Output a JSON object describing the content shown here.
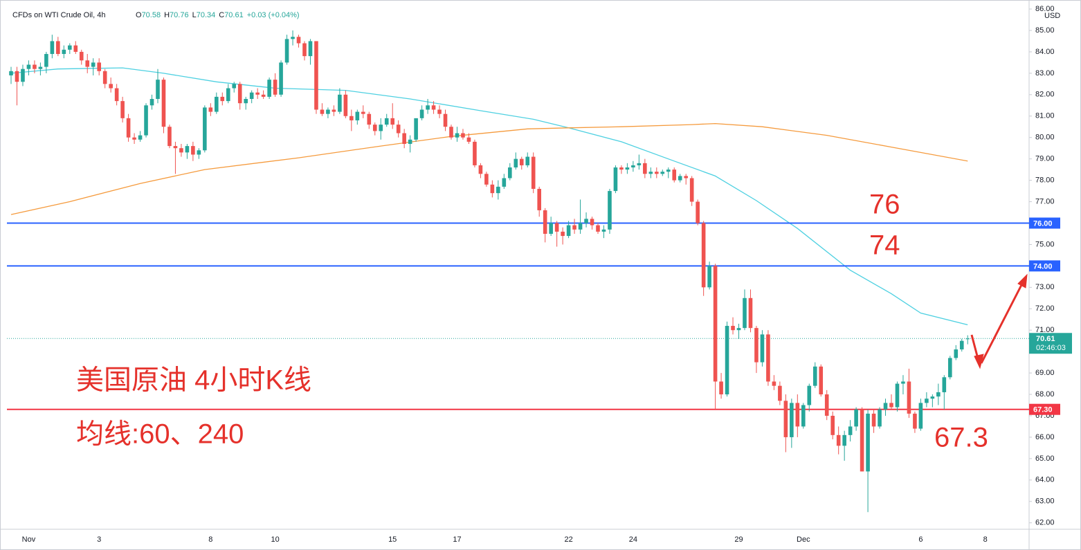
{
  "chart_data": {
    "type": "candlestick",
    "symbol": "CFDs on WTI Crude Oil, 4h",
    "readout": [
      [
        "O",
        "70.58"
      ],
      [
        "H",
        "70.76"
      ],
      [
        "L",
        "70.34"
      ],
      [
        "C",
        "70.61"
      ]
    ],
    "change": "+0.03 (+0.04%)",
    "currency": "USD",
    "up_color": "#26a69a",
    "down_color": "#ef5350",
    "ylim": [
      61.7,
      86.26
    ],
    "yticks": [
      {
        "value": 62,
        "label": "62.00"
      },
      {
        "value": 63,
        "label": "63.00"
      },
      {
        "value": 64,
        "label": "64.00"
      },
      {
        "value": 65,
        "label": "65.00"
      },
      {
        "value": 66,
        "label": "66.00"
      },
      {
        "value": 67,
        "label": "67.00"
      },
      {
        "value": 68,
        "label": "68.00"
      },
      {
        "value": 69,
        "label": "69.00"
      },
      {
        "value": 70,
        "label": "70.00"
      },
      {
        "value": 71,
        "label": "71.00"
      },
      {
        "value": 72,
        "label": "72.00"
      },
      {
        "value": 73,
        "label": "73.00"
      },
      {
        "value": 74,
        "label": "74.00"
      },
      {
        "value": 75,
        "label": "75.00"
      },
      {
        "value": 76,
        "label": "76.00"
      },
      {
        "value": 77,
        "label": "77.00"
      },
      {
        "value": 78,
        "label": "78.00"
      },
      {
        "value": 79,
        "label": "79.00"
      },
      {
        "value": 80,
        "label": "80.00"
      },
      {
        "value": 81,
        "label": "81.00"
      },
      {
        "value": 82,
        "label": "82.00"
      },
      {
        "value": 83,
        "label": "83.00"
      },
      {
        "value": 84,
        "label": "84.00"
      },
      {
        "value": 85,
        "label": "85.00"
      },
      {
        "value": 86,
        "label": "86.00"
      }
    ],
    "categories": [
      null,
      null,
      null,
      "Nov",
      null,
      null,
      null,
      null,
      null,
      null,
      null,
      null,
      null,
      null,
      null,
      "3",
      null,
      null,
      null,
      null,
      null,
      null,
      null,
      null,
      null,
      null,
      null,
      null,
      null,
      null,
      null,
      null,
      null,
      null,
      "8",
      null,
      null,
      null,
      null,
      null,
      null,
      null,
      null,
      null,
      null,
      "10",
      null,
      null,
      null,
      null,
      null,
      null,
      null,
      null,
      null,
      null,
      null,
      null,
      null,
      null,
      null,
      null,
      null,
      null,
      null,
      "15",
      null,
      null,
      null,
      null,
      null,
      null,
      null,
      null,
      null,
      null,
      "17",
      null,
      null,
      null,
      null,
      null,
      null,
      null,
      null,
      null,
      null,
      null,
      null,
      null,
      null,
      null,
      null,
      null,
      null,
      "22",
      null,
      null,
      null,
      null,
      null,
      null,
      null,
      null,
      null,
      null,
      "24",
      null,
      null,
      null,
      null,
      null,
      null,
      null,
      null,
      null,
      null,
      null,
      null,
      null,
      null,
      null,
      null,
      null,
      "29",
      null,
      null,
      null,
      null,
      null,
      null,
      null,
      null,
      null,
      null,
      "Dec",
      null,
      null,
      null,
      null,
      null,
      null,
      null,
      null,
      null,
      null,
      null,
      null,
      null,
      null,
      null,
      null,
      null,
      null,
      null,
      "6",
      null,
      null,
      null,
      null,
      null,
      null,
      null,
      null,
      null,
      null,
      "8"
    ],
    "ohlc": [
      [
        82.9,
        83.3,
        82.5,
        83.1
      ],
      [
        83.1,
        83.3,
        81.5,
        82.6
      ],
      [
        82.6,
        83.4,
        82.4,
        83.2
      ],
      [
        83.2,
        83.6,
        82.9,
        83.4
      ],
      [
        83.4,
        83.6,
        83.0,
        83.2
      ],
      [
        83.2,
        83.5,
        82.9,
        83.3
      ],
      [
        83.3,
        84.0,
        83.0,
        83.9
      ],
      [
        83.9,
        84.8,
        83.7,
        84.5
      ],
      [
        84.5,
        84.7,
        83.8,
        83.9
      ],
      [
        83.9,
        84.3,
        83.7,
        84.1
      ],
      [
        84.1,
        84.4,
        83.9,
        84.3
      ],
      [
        84.3,
        84.5,
        83.9,
        84.0
      ],
      [
        84.0,
        84.1,
        83.4,
        83.6
      ],
      [
        83.6,
        83.9,
        83.0,
        83.3
      ],
      [
        83.3,
        83.7,
        82.9,
        83.5
      ],
      [
        83.5,
        83.7,
        82.9,
        83.1
      ],
      [
        83.1,
        83.2,
        82.3,
        82.5
      ],
      [
        82.5,
        82.8,
        82.1,
        82.3
      ],
      [
        82.3,
        82.5,
        81.5,
        81.7
      ],
      [
        81.7,
        81.9,
        80.7,
        80.9
      ],
      [
        80.9,
        81.1,
        79.8,
        80.0
      ],
      [
        80.0,
        80.2,
        79.7,
        79.9
      ],
      [
        79.9,
        80.3,
        79.8,
        80.1
      ],
      [
        80.1,
        81.6,
        80.0,
        81.5
      ],
      [
        81.5,
        82.0,
        81.3,
        81.8
      ],
      [
        81.8,
        83.2,
        81.6,
        82.7
      ],
      [
        82.7,
        82.8,
        80.2,
        80.5
      ],
      [
        80.5,
        80.6,
        79.5,
        79.6
      ],
      [
        79.6,
        79.8,
        78.3,
        79.5
      ],
      [
        79.5,
        79.7,
        79.1,
        79.3
      ],
      [
        79.3,
        79.7,
        79.0,
        79.6
      ],
      [
        79.6,
        79.8,
        78.9,
        79.2
      ],
      [
        79.2,
        79.5,
        79.0,
        79.4
      ],
      [
        79.4,
        81.5,
        79.3,
        81.4
      ],
      [
        81.4,
        81.6,
        81.0,
        81.2
      ],
      [
        81.2,
        82.1,
        81.1,
        81.9
      ],
      [
        81.9,
        82.1,
        81.5,
        81.7
      ],
      [
        81.7,
        82.5,
        81.6,
        82.3
      ],
      [
        82.3,
        82.6,
        82.1,
        82.5
      ],
      [
        82.5,
        82.6,
        81.3,
        81.6
      ],
      [
        81.6,
        81.9,
        81.3,
        81.8
      ],
      [
        81.8,
        82.2,
        81.6,
        82.1
      ],
      [
        82.1,
        82.3,
        81.8,
        82.0
      ],
      [
        82.0,
        82.2,
        81.8,
        81.9
      ],
      [
        81.9,
        82.8,
        81.8,
        82.7
      ],
      [
        82.7,
        83.0,
        81.9,
        82.0
      ],
      [
        82.0,
        83.6,
        81.9,
        83.5
      ],
      [
        83.5,
        84.8,
        83.4,
        84.6
      ],
      [
        84.6,
        85.0,
        84.3,
        84.7
      ],
      [
        84.7,
        84.8,
        84.2,
        84.4
      ],
      [
        84.4,
        84.5,
        83.6,
        83.8
      ],
      [
        83.8,
        84.6,
        83.4,
        84.5
      ],
      [
        84.5,
        84.5,
        81.1,
        81.3
      ],
      [
        81.3,
        81.6,
        81.0,
        81.1
      ],
      [
        81.1,
        81.4,
        80.9,
        81.3
      ],
      [
        81.3,
        81.5,
        81.0,
        81.2
      ],
      [
        81.2,
        82.3,
        81.1,
        82.0
      ],
      [
        82.0,
        82.2,
        80.9,
        81.0
      ],
      [
        81.0,
        81.3,
        80.3,
        80.8
      ],
      [
        80.8,
        81.3,
        80.6,
        81.2
      ],
      [
        81.2,
        81.5,
        80.9,
        81.1
      ],
      [
        81.1,
        81.2,
        80.4,
        80.6
      ],
      [
        80.6,
        80.7,
        80.1,
        80.3
      ],
      [
        80.3,
        80.9,
        79.9,
        80.6
      ],
      [
        80.6,
        81.1,
        80.5,
        80.9
      ],
      [
        80.9,
        81.6,
        80.4,
        80.6
      ],
      [
        80.6,
        80.8,
        80.0,
        80.2
      ],
      [
        80.2,
        80.4,
        79.5,
        79.7
      ],
      [
        79.7,
        80.1,
        79.3,
        79.9
      ],
      [
        79.9,
        80.8,
        79.8,
        80.9
      ],
      [
        80.9,
        81.5,
        80.8,
        81.3
      ],
      [
        81.3,
        81.8,
        81.1,
        81.5
      ],
      [
        81.5,
        81.7,
        81.1,
        81.3
      ],
      [
        81.3,
        81.5,
        80.9,
        81.1
      ],
      [
        81.1,
        81.3,
        80.3,
        80.5
      ],
      [
        80.5,
        80.6,
        79.9,
        80.0
      ],
      [
        80.0,
        80.5,
        79.8,
        80.2
      ],
      [
        80.2,
        80.4,
        79.9,
        80.0
      ],
      [
        80.0,
        80.2,
        79.7,
        79.8
      ],
      [
        79.8,
        79.9,
        78.6,
        78.7
      ],
      [
        78.7,
        78.8,
        78.1,
        78.3
      ],
      [
        78.3,
        78.4,
        77.7,
        77.8
      ],
      [
        77.8,
        78.0,
        77.2,
        77.4
      ],
      [
        77.4,
        78.0,
        77.1,
        77.7
      ],
      [
        77.7,
        78.3,
        77.6,
        78.1
      ],
      [
        78.1,
        78.8,
        78.0,
        78.6
      ],
      [
        78.6,
        79.3,
        78.5,
        79.0
      ],
      [
        79.0,
        79.1,
        78.5,
        78.7
      ],
      [
        78.7,
        79.3,
        78.6,
        79.1
      ],
      [
        79.1,
        79.3,
        77.4,
        77.6
      ],
      [
        77.6,
        77.7,
        76.3,
        76.6
      ],
      [
        76.6,
        76.7,
        75.1,
        75.5
      ],
      [
        75.5,
        76.3,
        75.4,
        76.0
      ],
      [
        76.0,
        76.1,
        74.9,
        75.6
      ],
      [
        75.6,
        75.8,
        75.0,
        75.4
      ],
      [
        75.4,
        76.1,
        75.3,
        75.9
      ],
      [
        75.9,
        76.2,
        75.5,
        75.7
      ],
      [
        75.7,
        77.1,
        75.5,
        76.0
      ],
      [
        76.0,
        76.5,
        75.8,
        76.2
      ],
      [
        76.2,
        76.3,
        75.7,
        75.9
      ],
      [
        75.9,
        76.0,
        75.5,
        75.6
      ],
      [
        75.6,
        75.9,
        75.3,
        75.7
      ],
      [
        75.7,
        77.6,
        75.5,
        77.5
      ],
      [
        77.5,
        78.7,
        77.4,
        78.6
      ],
      [
        78.6,
        78.7,
        78.3,
        78.5
      ],
      [
        78.5,
        78.8,
        78.3,
        78.6
      ],
      [
        78.6,
        78.9,
        78.4,
        78.7
      ],
      [
        78.7,
        79.2,
        78.5,
        78.8
      ],
      [
        78.8,
        79.0,
        78.1,
        78.3
      ],
      [
        78.3,
        78.6,
        78.1,
        78.4
      ],
      [
        78.4,
        78.6,
        78.1,
        78.3
      ],
      [
        78.3,
        78.5,
        78.2,
        78.4
      ],
      [
        78.4,
        78.6,
        78.1,
        78.5
      ],
      [
        78.5,
        78.6,
        77.9,
        78.0
      ],
      [
        78.0,
        78.3,
        77.9,
        78.2
      ],
      [
        78.2,
        78.3,
        77.8,
        78.1
      ],
      [
        78.1,
        78.2,
        76.8,
        77.0
      ],
      [
        77.0,
        77.1,
        75.9,
        76.0
      ],
      [
        76.0,
        76.1,
        72.6,
        73.0
      ],
      [
        73.0,
        74.2,
        72.9,
        74.0
      ],
      [
        74.0,
        74.1,
        67.3,
        68.6
      ],
      [
        68.6,
        69.0,
        67.8,
        68.0
      ],
      [
        68.0,
        71.4,
        67.9,
        71.2
      ],
      [
        71.2,
        71.6,
        70.8,
        71.0
      ],
      [
        71.0,
        71.3,
        70.6,
        71.1
      ],
      [
        71.1,
        72.9,
        71.0,
        72.5
      ],
      [
        72.5,
        72.9,
        70.9,
        71.1
      ],
      [
        71.1,
        71.2,
        69.0,
        69.5
      ],
      [
        69.5,
        71.0,
        69.3,
        70.8
      ],
      [
        70.8,
        71.0,
        68.4,
        68.6
      ],
      [
        68.6,
        68.9,
        68.2,
        68.4
      ],
      [
        68.4,
        68.6,
        67.5,
        67.7
      ],
      [
        67.7,
        68.0,
        65.3,
        66.0
      ],
      [
        66.0,
        67.8,
        65.5,
        67.6
      ],
      [
        67.6,
        68.0,
        66.0,
        66.5
      ],
      [
        66.5,
        67.6,
        66.4,
        67.5
      ],
      [
        67.5,
        68.5,
        67.2,
        68.4
      ],
      [
        68.4,
        69.5,
        68.3,
        69.3
      ],
      [
        69.3,
        69.4,
        67.9,
        68.0
      ],
      [
        68.0,
        68.2,
        66.8,
        67.0
      ],
      [
        67.0,
        67.2,
        65.9,
        66.1
      ],
      [
        66.1,
        66.5,
        65.2,
        65.6
      ],
      [
        65.6,
        66.3,
        64.9,
        66.1
      ],
      [
        66.1,
        66.8,
        65.8,
        66.5
      ],
      [
        66.5,
        67.4,
        66.3,
        67.3
      ],
      [
        67.3,
        67.4,
        64.4,
        64.4
      ],
      [
        64.4,
        67.3,
        62.5,
        67.1
      ],
      [
        67.1,
        67.3,
        66.2,
        66.5
      ],
      [
        66.5,
        67.4,
        66.4,
        67.3
      ],
      [
        67.3,
        67.8,
        67.0,
        67.6
      ],
      [
        67.6,
        68.0,
        67.3,
        67.4
      ],
      [
        67.4,
        68.6,
        67.2,
        68.5
      ],
      [
        68.5,
        68.9,
        68.0,
        68.6
      ],
      [
        68.6,
        69.2,
        66.9,
        67.1
      ],
      [
        67.1,
        67.2,
        66.2,
        66.4
      ],
      [
        66.4,
        67.8,
        66.3,
        67.6
      ],
      [
        67.6,
        68.1,
        67.4,
        67.8
      ],
      [
        67.8,
        68.0,
        67.4,
        67.9
      ],
      [
        67.9,
        68.5,
        67.5,
        68.1
      ],
      [
        68.1,
        68.9,
        67.3,
        68.8
      ],
      [
        68.8,
        69.8,
        68.7,
        69.7
      ],
      [
        69.7,
        70.3,
        69.6,
        70.1
      ],
      [
        70.1,
        70.6,
        70.0,
        70.5
      ],
      [
        70.58,
        70.76,
        70.34,
        70.61
      ],
      null,
      null,
      null
    ],
    "moving_averages": [
      {
        "color": "#4dd0e1",
        "x": [
          0,
          8,
          19,
          26,
          35,
          45,
          57,
          68,
          80,
          89,
          95,
          104,
          113,
          120,
          127,
          134,
          143,
          150,
          155,
          163
        ],
        "values": [
          83.0,
          83.2,
          83.25,
          83.0,
          82.6,
          82.3,
          82.2,
          81.8,
          81.25,
          80.85,
          80.45,
          79.8,
          78.9,
          78.2,
          77.05,
          75.75,
          73.8,
          72.7,
          71.8,
          71.25
        ]
      },
      {
        "color": "#f59a3c",
        "x": [
          0,
          10,
          22,
          33,
          49,
          63,
          75,
          88,
          95,
          104,
          116,
          120,
          128,
          139,
          150,
          163
        ],
        "values": [
          76.4,
          77.0,
          77.85,
          78.5,
          79.05,
          79.6,
          80.05,
          80.4,
          80.45,
          80.5,
          80.6,
          80.65,
          80.5,
          80.1,
          79.55,
          78.9
        ]
      }
    ],
    "hlines": [
      {
        "value": 76,
        "label": "76.00",
        "color": "#2962ff"
      },
      {
        "value": 74,
        "label": "74.00",
        "color": "#2962ff"
      },
      {
        "value": 67.3,
        "label": "67.30",
        "color": "#f23645"
      }
    ],
    "last_price": {
      "value": 70.61,
      "label": "70.61",
      "countdown": "02:46:03",
      "color": "#26a69a"
    },
    "annotations": [
      "美国原油 4小时K线",
      "均线:60、240",
      "76",
      "74",
      "67.3"
    ]
  }
}
